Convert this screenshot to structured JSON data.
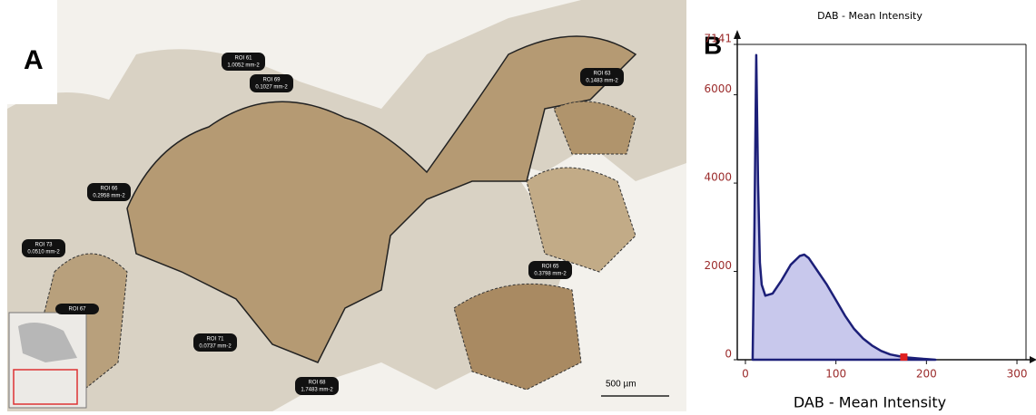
{
  "panel_a": {
    "label": "A",
    "scale_bar": "500 µm",
    "rois": [
      {
        "name": "ROI 61",
        "area": "1.0052 mm-2"
      },
      {
        "name": "ROI 69",
        "area": "0.1027 mm-2"
      },
      {
        "name": "ROI 63",
        "area": "0.1483 mm-2"
      },
      {
        "name": "ROI 66",
        "area": "0.2958 mm-2"
      },
      {
        "name": "ROI 73",
        "area": "0.0510 mm-2"
      },
      {
        "name": "ROI 67"
      },
      {
        "name": "ROI 65",
        "area": "0.3798 mm-2"
      },
      {
        "name": "ROI 71",
        "area": "0.0737 mm-2"
      },
      {
        "name": "ROI 68",
        "area": "1.7483 mm-2"
      }
    ]
  },
  "chart_data": {
    "type": "area",
    "panel_label": "B",
    "title": "DAB - Mean Intensity",
    "x_label": "DAB - Mean Intensity",
    "x": [
      8,
      10,
      12,
      14,
      16,
      18,
      22,
      30,
      40,
      50,
      60,
      65,
      70,
      80,
      90,
      100,
      110,
      120,
      130,
      140,
      150,
      160,
      170,
      180,
      190,
      200,
      210
    ],
    "values": [
      0,
      3000,
      6900,
      4000,
      2200,
      1700,
      1450,
      1500,
      1800,
      2150,
      2350,
      2380,
      2300,
      2000,
      1700,
      1350,
      1000,
      700,
      480,
      320,
      200,
      120,
      80,
      50,
      30,
      15,
      0
    ],
    "color": "#1c1f78",
    "fill": "#c8c8ec",
    "marker": {
      "x": 175,
      "y": 60,
      "color": "#e02020"
    },
    "xlim": [
      -9,
      310
    ],
    "ylim": [
      0,
      7141
    ],
    "xticks": [
      0,
      100,
      200,
      300
    ],
    "yticks": [
      0,
      2000,
      4000,
      6000,
      7141
    ]
  }
}
